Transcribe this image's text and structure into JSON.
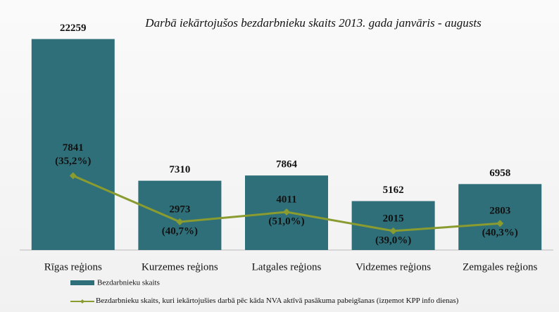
{
  "chart_data": {
    "type": "bar-line",
    "title": "Darbā iekārtojušos bezdarbnieku skaits 2013. gada janvāris - augusts",
    "categories": [
      "Rīgas reģions",
      "Kurzemes reģions",
      "Latgales reģions",
      "Vidzemes reģions",
      "Zemgales reģions"
    ],
    "series": [
      {
        "name": "Bezdarbnieku skaits",
        "type": "bar",
        "color": "#2f6f79",
        "values": [
          22259,
          7310,
          7864,
          5162,
          6958
        ]
      },
      {
        "name": "Bezdarbnieku skaits, kuri  iekārtojušies darbā pēc kāda NVA aktīvā pasākuma pabeigšanas (izņemot KPP info dienas)",
        "type": "line",
        "color": "#8a9b2f",
        "values": [
          7841,
          2973,
          4011,
          2015,
          2803
        ],
        "percent_labels": [
          "(35,2%)",
          "(40,7%)",
          "(51,0%)",
          "(39,0%)",
          "(40,3%)"
        ]
      }
    ],
    "ylim": [
      0,
      24000
    ],
    "legend": "bottom"
  }
}
